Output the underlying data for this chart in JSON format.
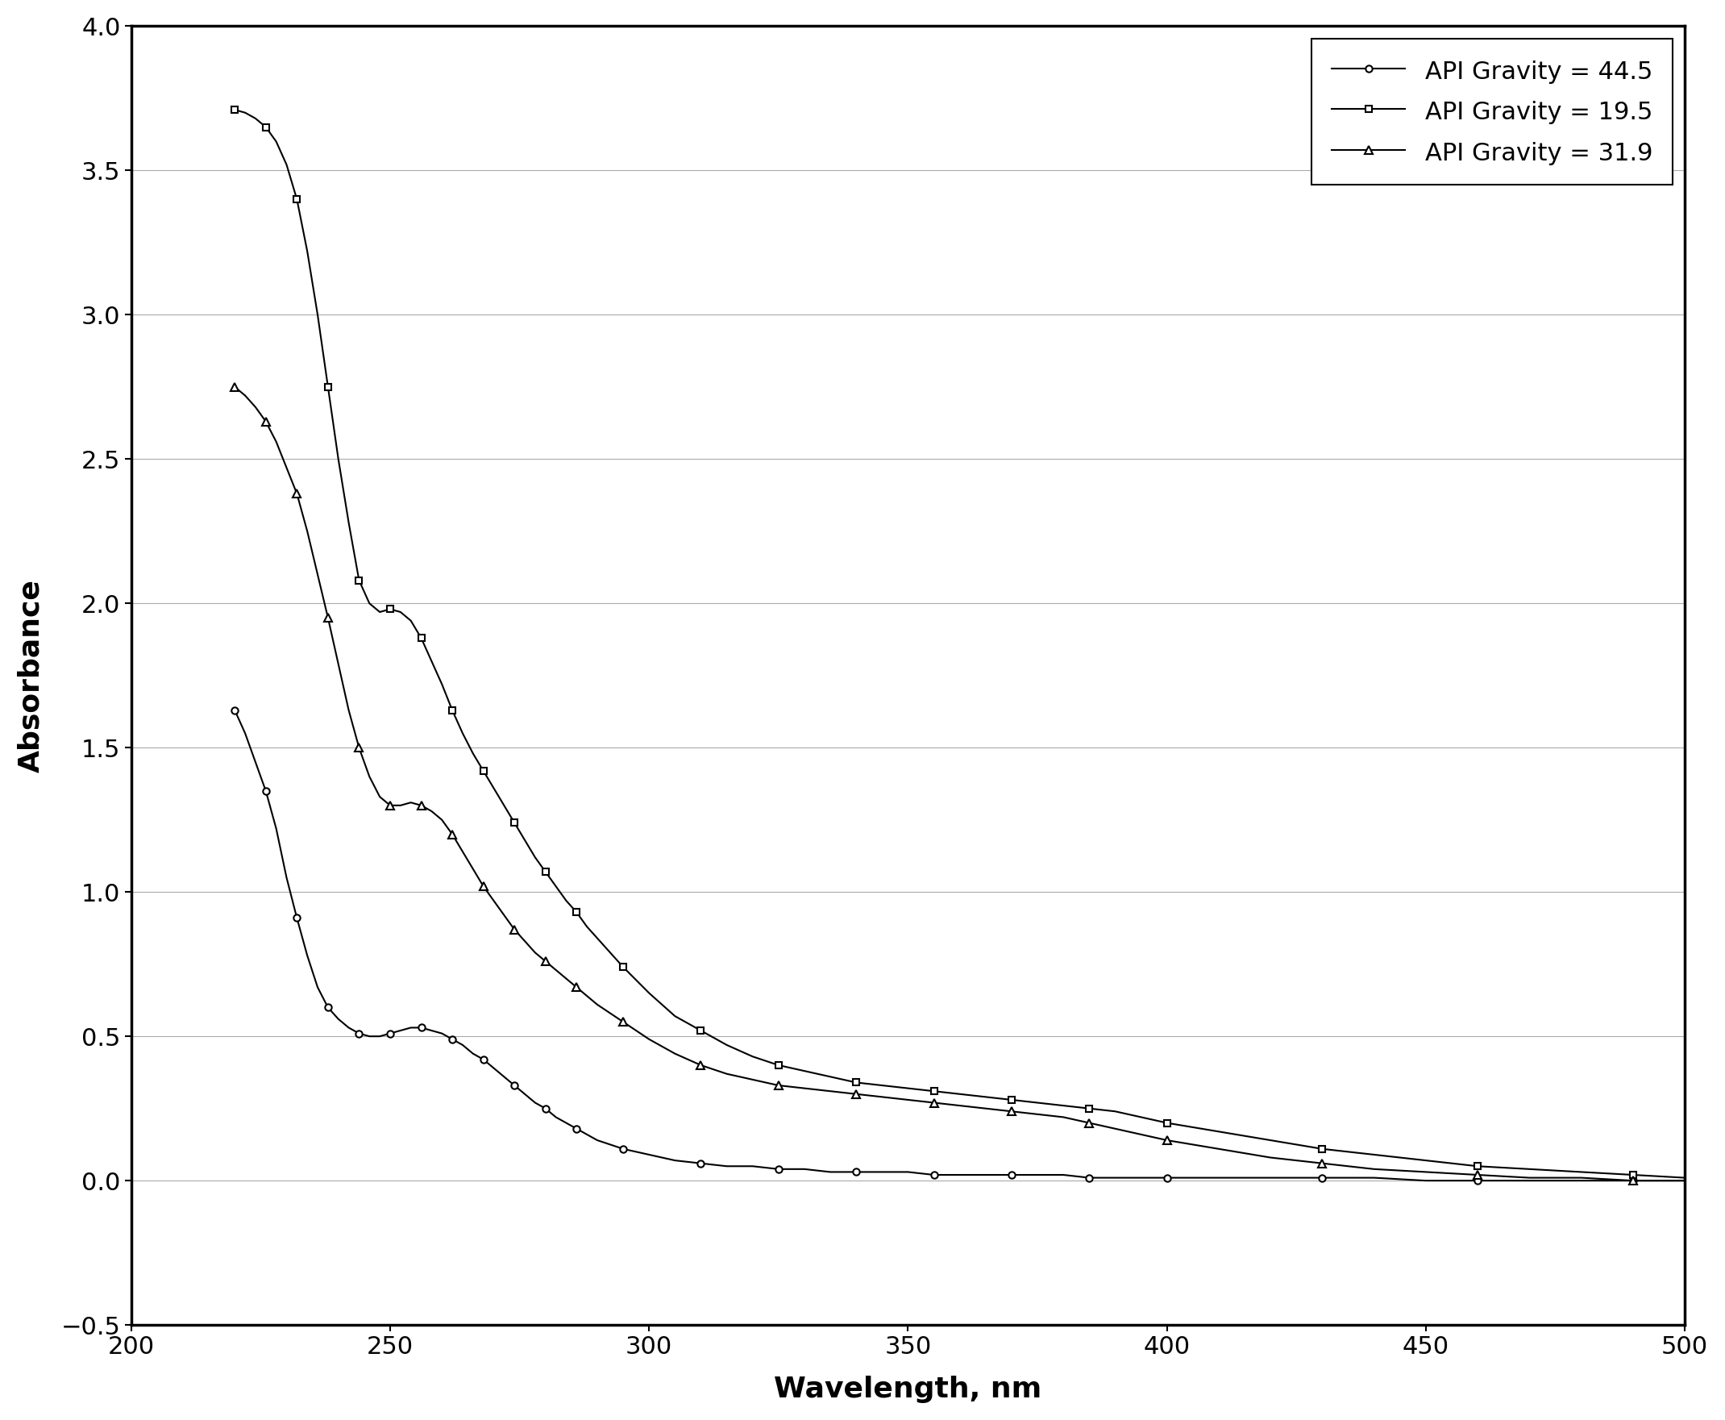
{
  "xlabel": "Wavelength, nm",
  "ylabel": "Absorbance",
  "xlim": [
    200,
    500
  ],
  "ylim": [
    -0.5,
    4.0
  ],
  "xticks": [
    200,
    250,
    300,
    350,
    400,
    450,
    500
  ],
  "yticks": [
    -0.5,
    0.0,
    0.5,
    1.0,
    1.5,
    2.0,
    2.5,
    3.0,
    3.5,
    4.0
  ],
  "line_color": "#000000",
  "background_color": "#ffffff",
  "series": {
    "api44": {
      "label": "API Gravity = 44.5",
      "marker": "o",
      "wavelengths": [
        220,
        222,
        224,
        226,
        228,
        230,
        232,
        234,
        236,
        238,
        240,
        242,
        244,
        246,
        248,
        250,
        252,
        254,
        256,
        258,
        260,
        262,
        264,
        266,
        268,
        270,
        272,
        274,
        276,
        278,
        280,
        282,
        284,
        286,
        288,
        290,
        295,
        300,
        305,
        310,
        315,
        320,
        325,
        330,
        335,
        340,
        345,
        350,
        355,
        360,
        365,
        370,
        375,
        380,
        385,
        390,
        395,
        400,
        410,
        420,
        430,
        440,
        450,
        460,
        470,
        480,
        490,
        500
      ],
      "absorbance": [
        1.63,
        1.55,
        1.45,
        1.35,
        1.22,
        1.05,
        0.91,
        0.78,
        0.67,
        0.6,
        0.56,
        0.53,
        0.51,
        0.5,
        0.5,
        0.51,
        0.52,
        0.53,
        0.53,
        0.52,
        0.51,
        0.49,
        0.47,
        0.44,
        0.42,
        0.39,
        0.36,
        0.33,
        0.3,
        0.27,
        0.25,
        0.22,
        0.2,
        0.18,
        0.16,
        0.14,
        0.11,
        0.09,
        0.07,
        0.06,
        0.05,
        0.05,
        0.04,
        0.04,
        0.03,
        0.03,
        0.03,
        0.03,
        0.02,
        0.02,
        0.02,
        0.02,
        0.02,
        0.02,
        0.01,
        0.01,
        0.01,
        0.01,
        0.01,
        0.01,
        0.01,
        0.01,
        0.0,
        0.0,
        0.0,
        0.0,
        0.0,
        0.0
      ]
    },
    "api19": {
      "label": "API Gravity = 19.5",
      "marker": "s",
      "wavelengths": [
        220,
        222,
        224,
        226,
        228,
        230,
        232,
        234,
        236,
        238,
        240,
        242,
        244,
        246,
        248,
        250,
        252,
        254,
        256,
        258,
        260,
        262,
        264,
        266,
        268,
        270,
        272,
        274,
        276,
        278,
        280,
        282,
        284,
        286,
        288,
        290,
        295,
        300,
        305,
        310,
        315,
        320,
        325,
        330,
        335,
        340,
        345,
        350,
        355,
        360,
        365,
        370,
        375,
        380,
        385,
        390,
        395,
        400,
        410,
        420,
        430,
        440,
        450,
        460,
        470,
        480,
        490,
        500
      ],
      "absorbance": [
        3.71,
        3.7,
        3.68,
        3.65,
        3.6,
        3.52,
        3.4,
        3.22,
        3.0,
        2.75,
        2.5,
        2.28,
        2.08,
        2.0,
        1.97,
        1.98,
        1.97,
        1.94,
        1.88,
        1.8,
        1.72,
        1.63,
        1.55,
        1.48,
        1.42,
        1.36,
        1.3,
        1.24,
        1.18,
        1.12,
        1.07,
        1.02,
        0.97,
        0.93,
        0.88,
        0.84,
        0.74,
        0.65,
        0.57,
        0.52,
        0.47,
        0.43,
        0.4,
        0.38,
        0.36,
        0.34,
        0.33,
        0.32,
        0.31,
        0.3,
        0.29,
        0.28,
        0.27,
        0.26,
        0.25,
        0.24,
        0.22,
        0.2,
        0.17,
        0.14,
        0.11,
        0.09,
        0.07,
        0.05,
        0.04,
        0.03,
        0.02,
        0.01
      ]
    },
    "api31": {
      "label": "API Gravity = 31.9",
      "marker": "^",
      "wavelengths": [
        220,
        222,
        224,
        226,
        228,
        230,
        232,
        234,
        236,
        238,
        240,
        242,
        244,
        246,
        248,
        250,
        252,
        254,
        256,
        258,
        260,
        262,
        264,
        266,
        268,
        270,
        272,
        274,
        276,
        278,
        280,
        282,
        284,
        286,
        288,
        290,
        295,
        300,
        305,
        310,
        315,
        320,
        325,
        330,
        335,
        340,
        345,
        350,
        355,
        360,
        365,
        370,
        375,
        380,
        385,
        390,
        395,
        400,
        410,
        420,
        430,
        440,
        450,
        460,
        470,
        480,
        490,
        500
      ],
      "absorbance": [
        2.75,
        2.72,
        2.68,
        2.63,
        2.56,
        2.47,
        2.38,
        2.25,
        2.1,
        1.95,
        1.79,
        1.63,
        1.5,
        1.4,
        1.33,
        1.3,
        1.3,
        1.31,
        1.3,
        1.28,
        1.25,
        1.2,
        1.14,
        1.08,
        1.02,
        0.97,
        0.92,
        0.87,
        0.83,
        0.79,
        0.76,
        0.73,
        0.7,
        0.67,
        0.64,
        0.61,
        0.55,
        0.49,
        0.44,
        0.4,
        0.37,
        0.35,
        0.33,
        0.32,
        0.31,
        0.3,
        0.29,
        0.28,
        0.27,
        0.26,
        0.25,
        0.24,
        0.23,
        0.22,
        0.2,
        0.18,
        0.16,
        0.14,
        0.11,
        0.08,
        0.06,
        0.04,
        0.03,
        0.02,
        0.01,
        0.01,
        0.0,
        0.0
      ]
    }
  }
}
